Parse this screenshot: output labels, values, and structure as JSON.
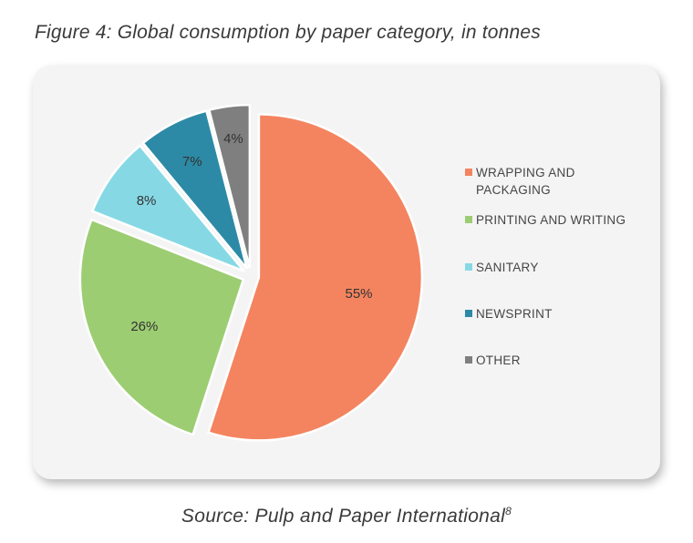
{
  "figure": {
    "title": "Figure 4: Global consumption by paper category, in tonnes",
    "source_text": "Source: Pulp and Paper International",
    "source_ref": "8"
  },
  "chart_data": {
    "type": "pie",
    "title": "",
    "categories": [
      "WRAPPING AND PACKAGING",
      "PRINTING AND WRITING",
      "SANITARY",
      "NEWSPRINT",
      "OTHER"
    ],
    "values": [
      55,
      26,
      8,
      7,
      4
    ],
    "labels": [
      "55%",
      "26%",
      "8%",
      "7%",
      "4%"
    ],
    "colors": [
      "#f4845f",
      "#9ccd72",
      "#86d9e4",
      "#2d8aa6",
      "#7f7f7f"
    ],
    "exploded": true,
    "legend_position": "right"
  }
}
